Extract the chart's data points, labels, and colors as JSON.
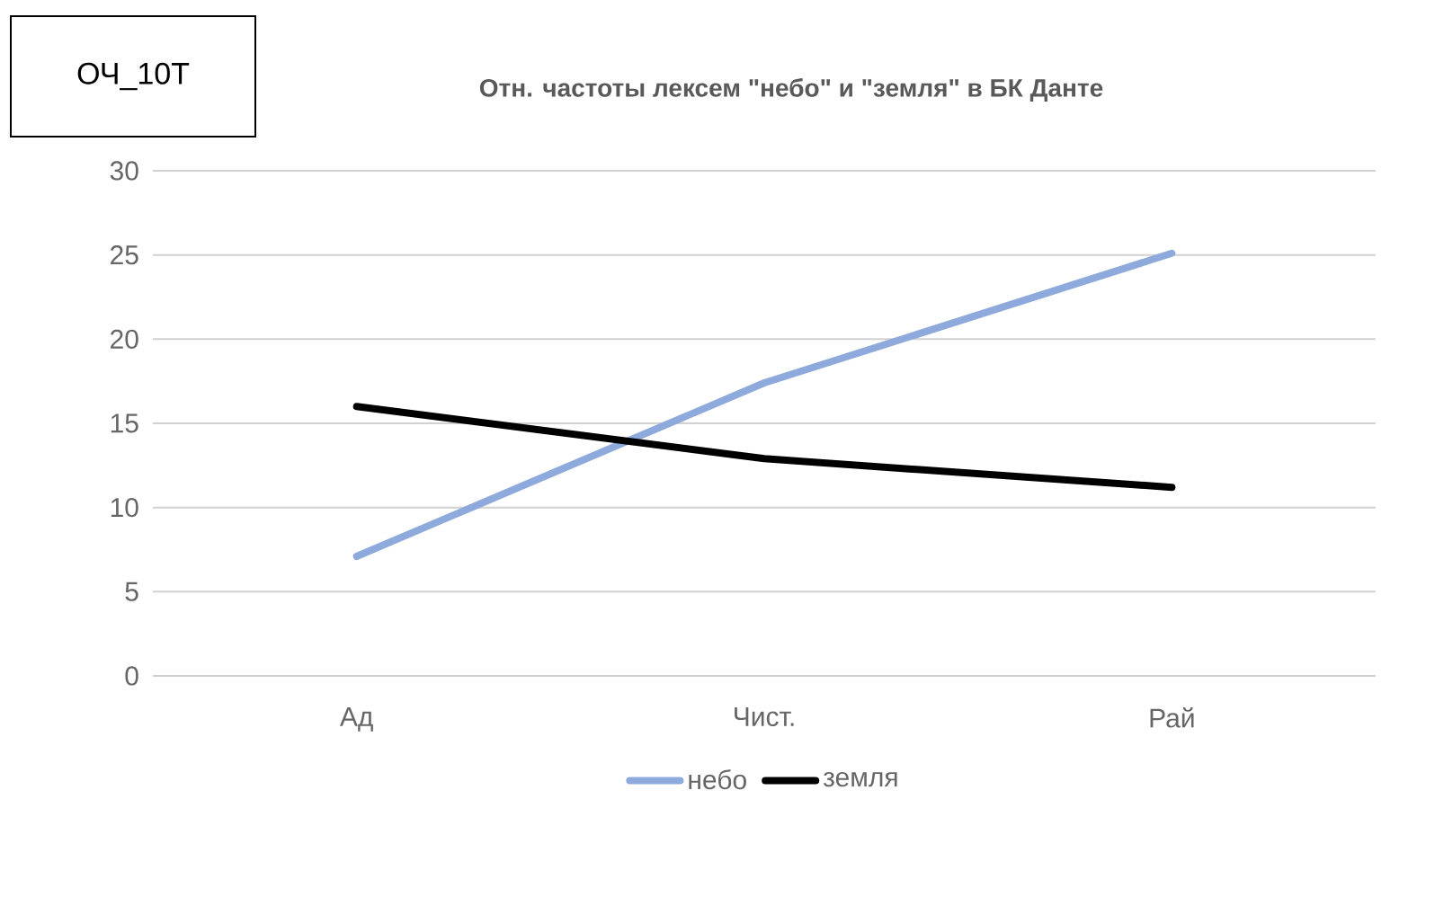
{
  "chart_data": {
    "type": "line",
    "title": "Отн. частоты лексем \"небо\" и \"земля\" в БК Данте",
    "annotations": [
      "ОЧ_10Т"
    ],
    "categories": [
      "Ад",
      "Чист.",
      "Рай"
    ],
    "series": [
      {
        "name": "небо",
        "color": "#8eaadc",
        "values": [
          7.1,
          17.4,
          25.1
        ]
      },
      {
        "name": "земля",
        "color": "#000000",
        "values": [
          16,
          12.9,
          11.2
        ]
      }
    ],
    "ylim": [
      0,
      30
    ],
    "yticks": [
      0,
      5,
      10,
      15,
      20,
      25,
      30
    ],
    "grid": "y",
    "legend": "bottom",
    "marker": "none",
    "line_style": "solid"
  }
}
